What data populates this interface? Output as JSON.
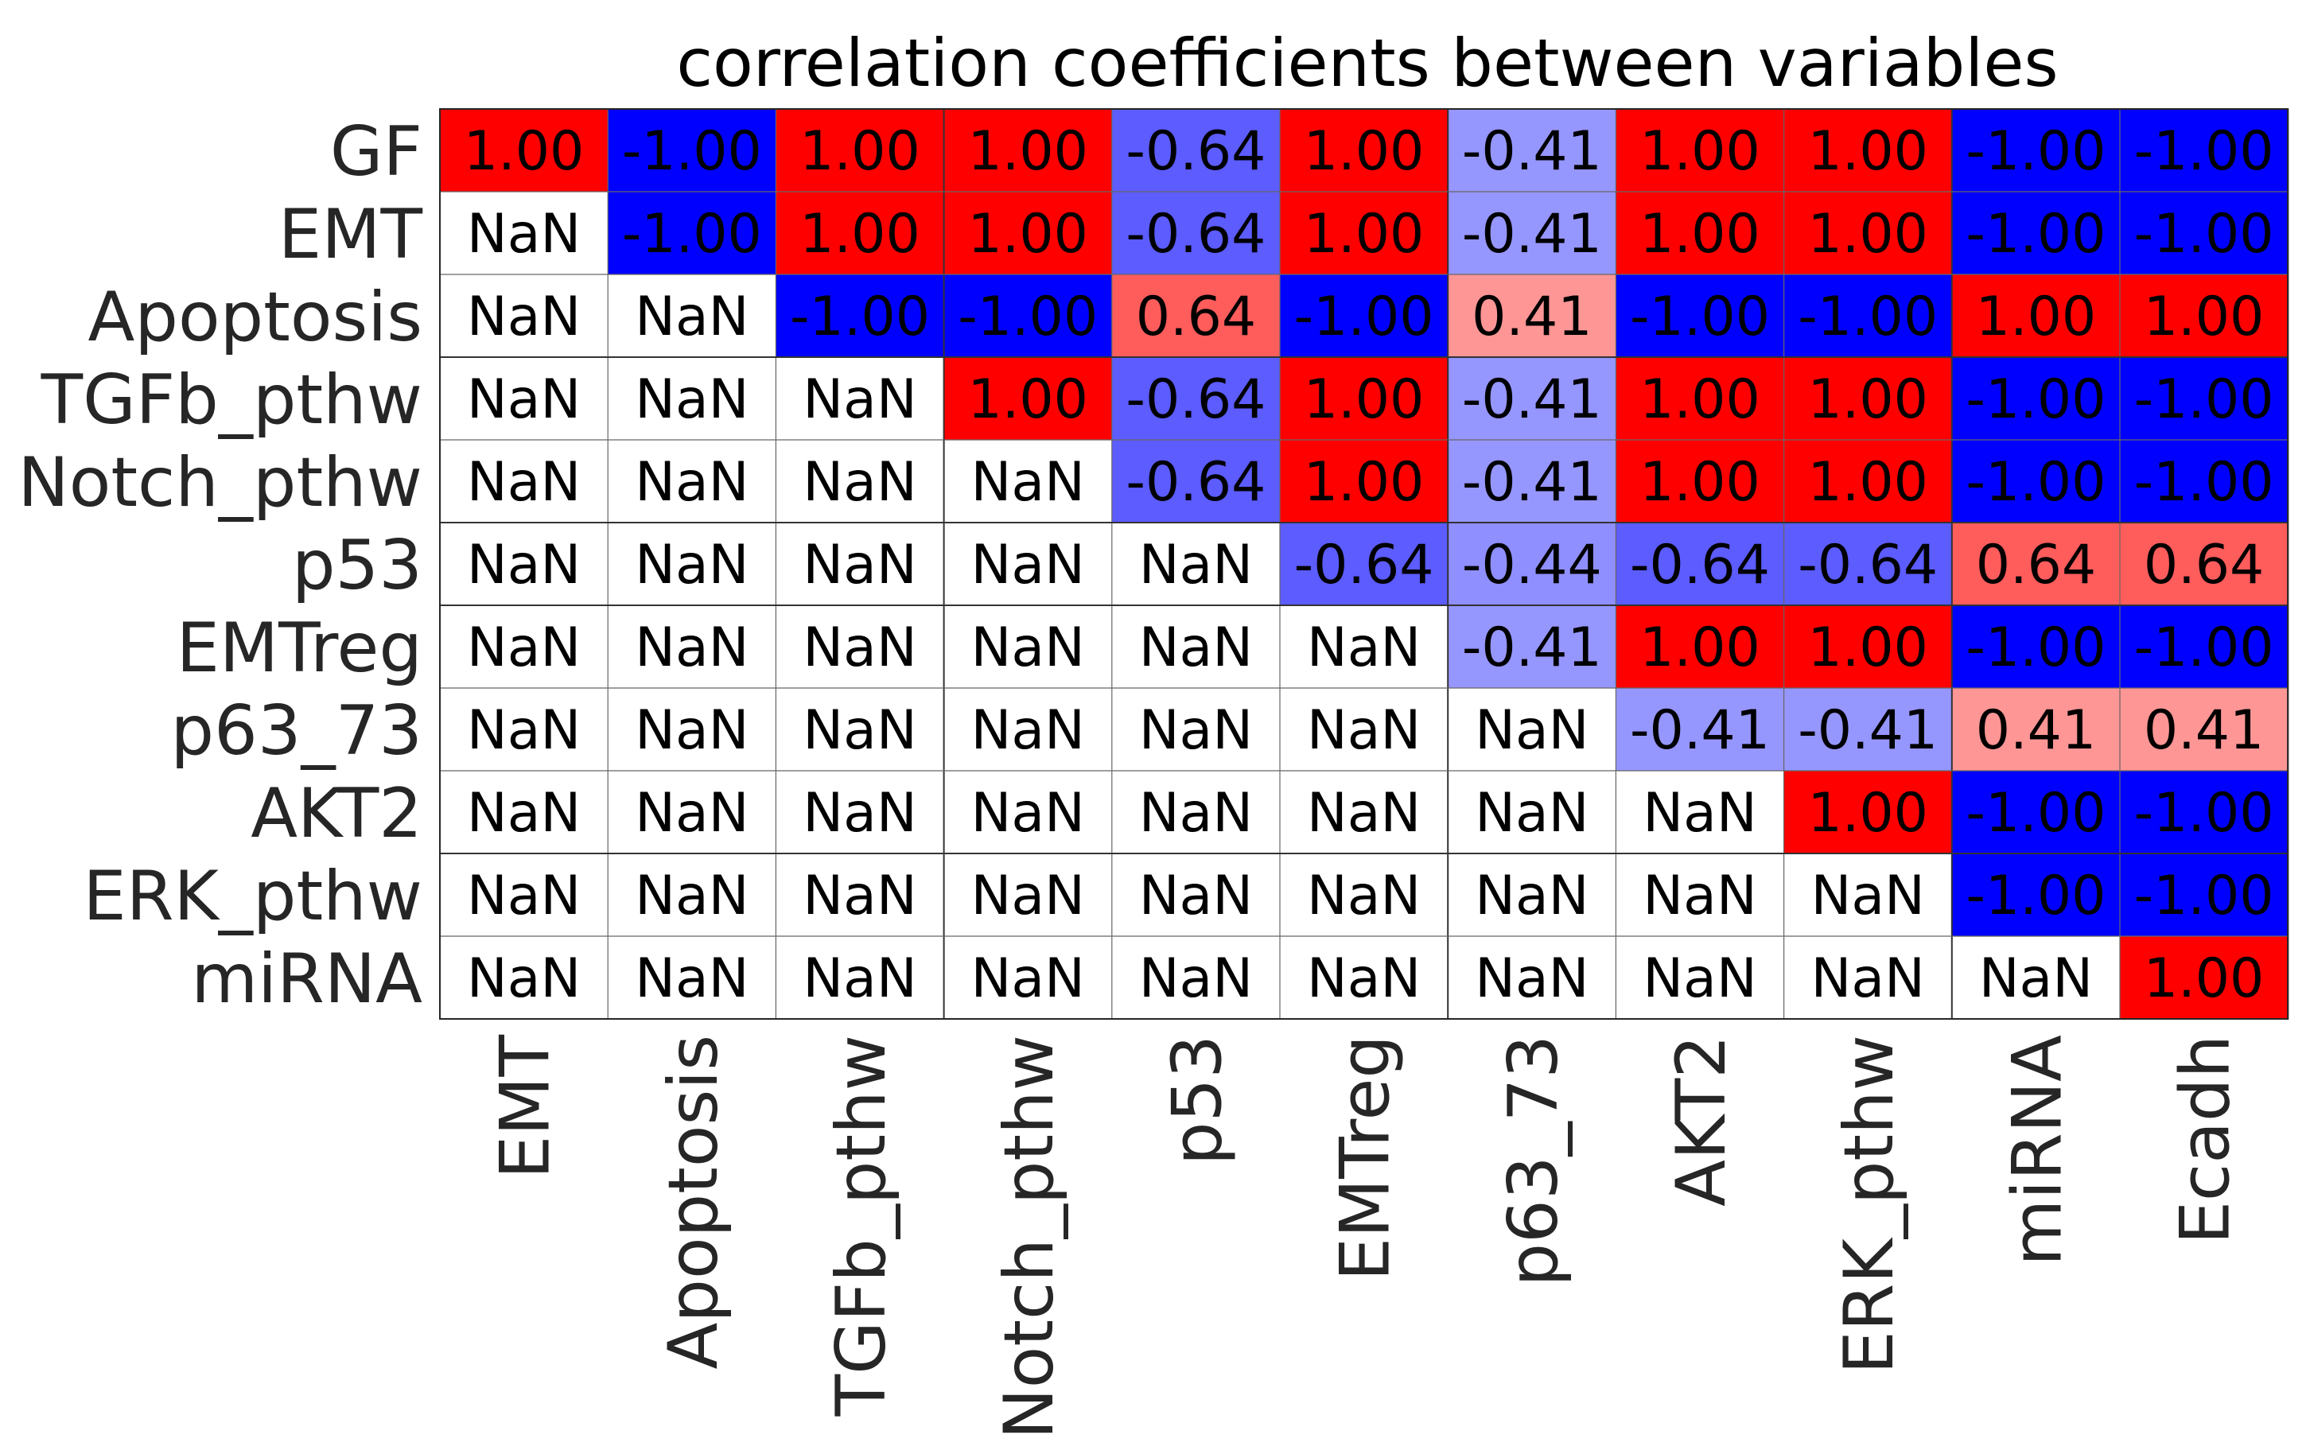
{
  "chart_data": {
    "type": "heatmap",
    "title": "correlation coefficients between variables",
    "xlabel": "",
    "ylabel": "",
    "rows": [
      "GF",
      "EMT",
      "Apoptosis",
      "TGFb_pthw",
      "Notch_pthw",
      "p53",
      "EMTreg",
      "p63_73",
      "AKT2",
      "ERK_pthw",
      "miRNA"
    ],
    "columns": [
      "EMT",
      "Apoptosis",
      "TGFb_pthw",
      "Notch_pthw",
      "p53",
      "EMTreg",
      "p63_73",
      "AKT2",
      "ERK_pthw",
      "miRNA",
      "Ecadh"
    ],
    "values": [
      [
        "1.00",
        "-1.00",
        "1.00",
        "1.00",
        "-0.64",
        "1.00",
        "-0.41",
        "1.00",
        "1.00",
        "-1.00",
        "-1.00"
      ],
      [
        "NaN",
        "-1.00",
        "1.00",
        "1.00",
        "-0.64",
        "1.00",
        "-0.41",
        "1.00",
        "1.00",
        "-1.00",
        "-1.00"
      ],
      [
        "NaN",
        "NaN",
        "-1.00",
        "-1.00",
        "0.64",
        "-1.00",
        "0.41",
        "-1.00",
        "-1.00",
        "1.00",
        "1.00"
      ],
      [
        "NaN",
        "NaN",
        "NaN",
        "1.00",
        "-0.64",
        "1.00",
        "-0.41",
        "1.00",
        "1.00",
        "-1.00",
        "-1.00"
      ],
      [
        "NaN",
        "NaN",
        "NaN",
        "NaN",
        "-0.64",
        "1.00",
        "-0.41",
        "1.00",
        "1.00",
        "-1.00",
        "-1.00"
      ],
      [
        "NaN",
        "NaN",
        "NaN",
        "NaN",
        "NaN",
        "-0.64",
        "-0.44",
        "-0.64",
        "-0.64",
        "0.64",
        "0.64"
      ],
      [
        "NaN",
        "NaN",
        "NaN",
        "NaN",
        "NaN",
        "NaN",
        "-0.41",
        "1.00",
        "1.00",
        "-1.00",
        "-1.00"
      ],
      [
        "NaN",
        "NaN",
        "NaN",
        "NaN",
        "NaN",
        "NaN",
        "NaN",
        "-0.41",
        "-0.41",
        "0.41",
        "0.41"
      ],
      [
        "NaN",
        "NaN",
        "NaN",
        "NaN",
        "NaN",
        "NaN",
        "NaN",
        "NaN",
        "1.00",
        "-1.00",
        "-1.00"
      ],
      [
        "NaN",
        "NaN",
        "NaN",
        "NaN",
        "NaN",
        "NaN",
        "NaN",
        "NaN",
        "NaN",
        "-1.00",
        "-1.00"
      ],
      [
        "NaN",
        "NaN",
        "NaN",
        "NaN",
        "NaN",
        "NaN",
        "NaN",
        "NaN",
        "NaN",
        "NaN",
        "1.00"
      ]
    ],
    "value_range": [
      -1,
      1
    ],
    "colormap": {
      "negative": "#0000ff",
      "zero": "#ffffff",
      "positive": "#ff0000",
      "nan": "#ffffff"
    },
    "grid": true,
    "legend": "none"
  }
}
